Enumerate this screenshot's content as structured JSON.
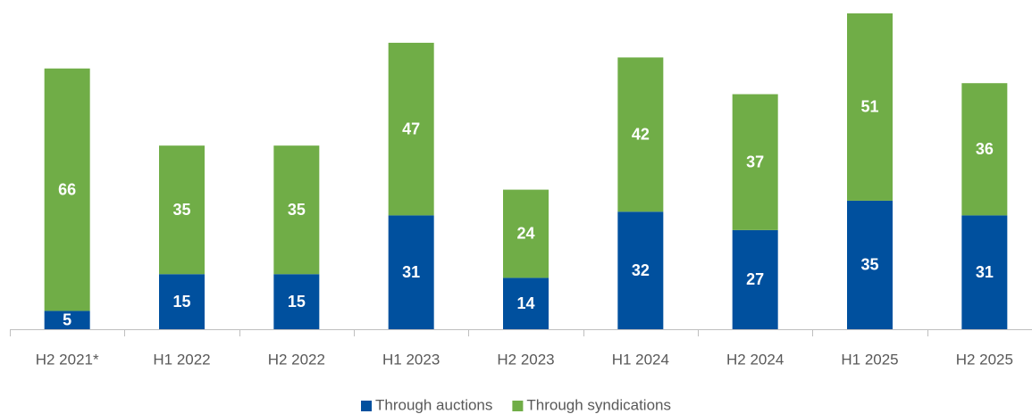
{
  "chart_data": {
    "type": "stacked_bar",
    "categories": [
      "H2 2021*",
      "H1 2022",
      "H2 2022",
      "H1 2023",
      "H2 2023",
      "H1 2024",
      "H2 2024",
      "H1 2025",
      "H2 2025"
    ],
    "series": [
      {
        "name": "Through auctions",
        "color": "#00509e",
        "values": [
          5,
          15,
          15,
          31,
          14,
          32,
          27,
          35,
          31
        ]
      },
      {
        "name": "Through syndications",
        "color": "#70ad47",
        "values": [
          66,
          35,
          35,
          47,
          24,
          42,
          37,
          51,
          36
        ]
      }
    ],
    "legend": "bottom"
  }
}
